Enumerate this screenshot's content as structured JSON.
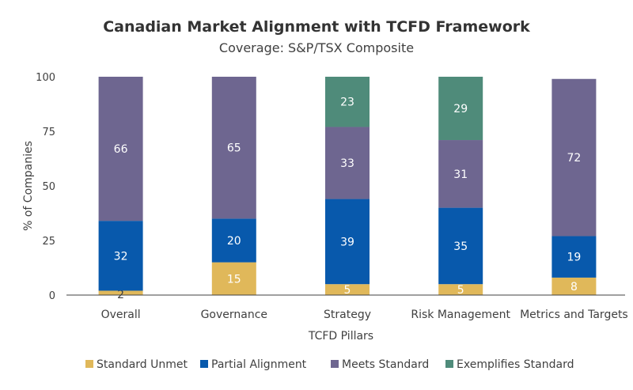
{
  "chart_data": {
    "type": "bar",
    "stacked": true,
    "title": "Canadian Market Alignment with TCFD Framework",
    "subtitle": "Coverage: S&P/TSX Composite",
    "xlabel": "TCFD Pillars",
    "ylabel": "% of Companies",
    "ylim": [
      0,
      100
    ],
    "yticks": [
      0,
      25,
      50,
      75,
      100
    ],
    "grid": false,
    "legend_position": "bottom",
    "categories": [
      "Overall",
      "Governance",
      "Strategy",
      "Risk Management",
      "Metrics and Targets"
    ],
    "series": [
      {
        "name": "Standard Unmet",
        "color": "#E0B85A",
        "values": [
          2,
          15,
          5,
          5,
          8
        ]
      },
      {
        "name": "Partial Alignment",
        "color": "#0859AC",
        "values": [
          32,
          20,
          39,
          35,
          19
        ]
      },
      {
        "name": "Meets Standard",
        "color": "#6E6690",
        "values": [
          66,
          65,
          33,
          31,
          72
        ]
      },
      {
        "name": "Exemplifies Standard",
        "color": "#4F8B7A",
        "values": [
          0,
          0,
          23,
          29,
          0
        ]
      }
    ]
  }
}
